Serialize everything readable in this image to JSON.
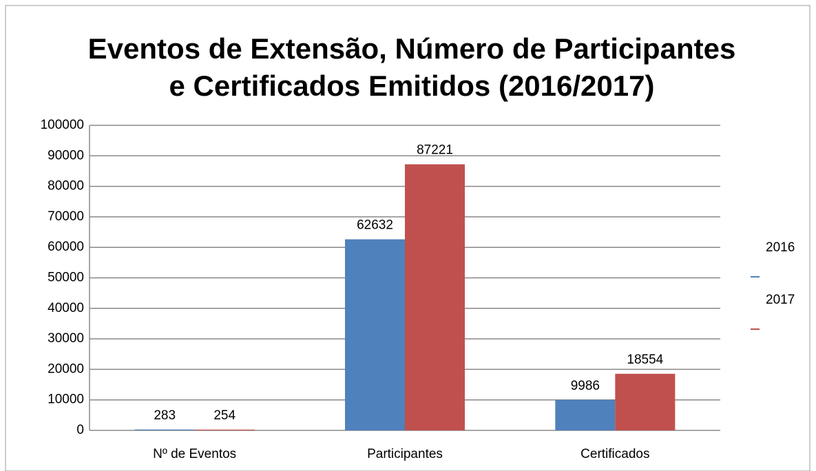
{
  "chart_data": {
    "type": "bar",
    "title": [
      "Eventos de Extensão, Número de Participantes",
      "e Certificados Emitidos (2016/2017)"
    ],
    "categories": [
      "Nº de Eventos",
      "Participantes",
      "Certificados"
    ],
    "series": [
      {
        "name": "2016",
        "color": "#4f81bd",
        "values": [
          283,
          62632,
          9986
        ]
      },
      {
        "name": "2017",
        "color": "#c0504d",
        "values": [
          254,
          87221,
          18554
        ]
      }
    ],
    "ylim": [
      0,
      100000
    ],
    "yticks": [
      0,
      10000,
      20000,
      30000,
      40000,
      50000,
      60000,
      70000,
      80000,
      90000,
      100000
    ],
    "grid": true,
    "legend": "right"
  }
}
